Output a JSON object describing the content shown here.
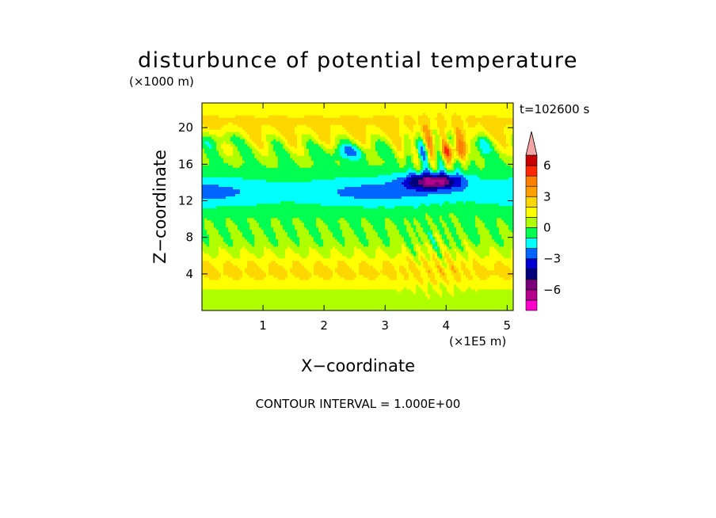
{
  "chart_data": {
    "type": "heatmap",
    "title": "disturbunce of potential temperature",
    "xlabel": "X−coordinate",
    "ylabel": "Z−coordinate",
    "x_unit": "(×1E5 m)",
    "y_unit": "(×1000 m)",
    "time_label": "t=102600 s",
    "contour_note": "CONTOUR INTERVAL = 1.000E+00",
    "xlim": [
      0,
      5.1
    ],
    "ylim": [
      0,
      22.7
    ],
    "xticks": [
      {
        "value": 1,
        "label": "1"
      },
      {
        "value": 2,
        "label": "2"
      },
      {
        "value": 3,
        "label": "3"
      },
      {
        "value": 4,
        "label": "4"
      },
      {
        "value": 5,
        "label": "5"
      }
    ],
    "yticks": [
      {
        "value": 4,
        "label": "4"
      },
      {
        "value": 8,
        "label": "8"
      },
      {
        "value": 12,
        "label": "12"
      },
      {
        "value": 16,
        "label": "16"
      },
      {
        "value": 20,
        "label": "20"
      }
    ],
    "colorbar": {
      "levels": [
        -8,
        -7,
        -6,
        -5,
        -4,
        -3,
        -2,
        -1,
        0,
        1,
        2,
        3,
        4,
        5,
        6,
        7,
        8
      ],
      "colors": [
        "#ff00cc",
        "#b4008c",
        "#7a007a",
        "#00007a",
        "#0000d2",
        "#0064ff",
        "#00ffff",
        "#00ff50",
        "#afff00",
        "#ffff00",
        "#ffd700",
        "#ffa000",
        "#ff7f00",
        "#ff2800",
        "#c80000",
        "#f5a5a5"
      ],
      "tick_labels": [
        {
          "value": -6,
          "label": "−6"
        },
        {
          "value": -3,
          "label": "−3"
        },
        {
          "value": 0,
          "label": "0"
        },
        {
          "value": 3,
          "label": "3"
        },
        {
          "value": 6,
          "label": "6"
        }
      ]
    }
  }
}
